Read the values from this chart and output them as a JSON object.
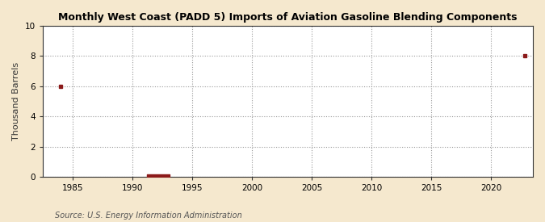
{
  "title": "Monthly West Coast (PADD 5) Imports of Aviation Gasoline Blending Components",
  "ylabel": "Thousand Barrels",
  "source": "Source: U.S. Energy Information Administration",
  "background_color": "#f5e8ce",
  "plot_bg_color": "#ffffff",
  "marker_color": "#8b1a1a",
  "xlim": [
    1982.5,
    2023.5
  ],
  "ylim": [
    0,
    10
  ],
  "yticks": [
    0,
    2,
    4,
    6,
    8,
    10
  ],
  "xticks": [
    1985,
    1990,
    1995,
    2000,
    2005,
    2010,
    2015,
    2020
  ],
  "point1_x": 1984.0,
  "point1_y": 6.0,
  "bar_x_start": 1991.2,
  "bar_x_end": 1993.1,
  "bar_y": 0.18,
  "point2_x": 2022.8,
  "point2_y": 8.0
}
